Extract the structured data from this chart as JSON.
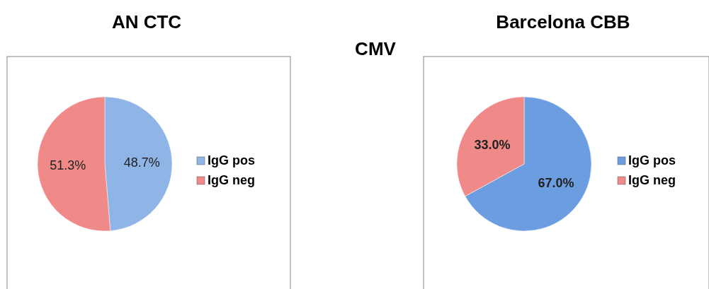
{
  "chart_data": [
    {
      "type": "pie",
      "title": "AN CTC",
      "subtitle": "CMV",
      "categories": [
        "IgG pos",
        "IgG neg"
      ],
      "values": [
        48.7,
        51.3
      ],
      "colors": [
        "#8fb4e6",
        "#f08a88"
      ],
      "value_labels": [
        "48.7%",
        "51.3%"
      ],
      "legend": "right"
    },
    {
      "type": "pie",
      "title": "Barcelona CBB",
      "categories": [
        "IgG pos",
        "IgG neg"
      ],
      "values": [
        67.0,
        33.0
      ],
      "colors": [
        "#6c9de0",
        "#f08a88"
      ],
      "value_labels": [
        "67.0%",
        "33.0%"
      ],
      "legend": "right"
    }
  ]
}
